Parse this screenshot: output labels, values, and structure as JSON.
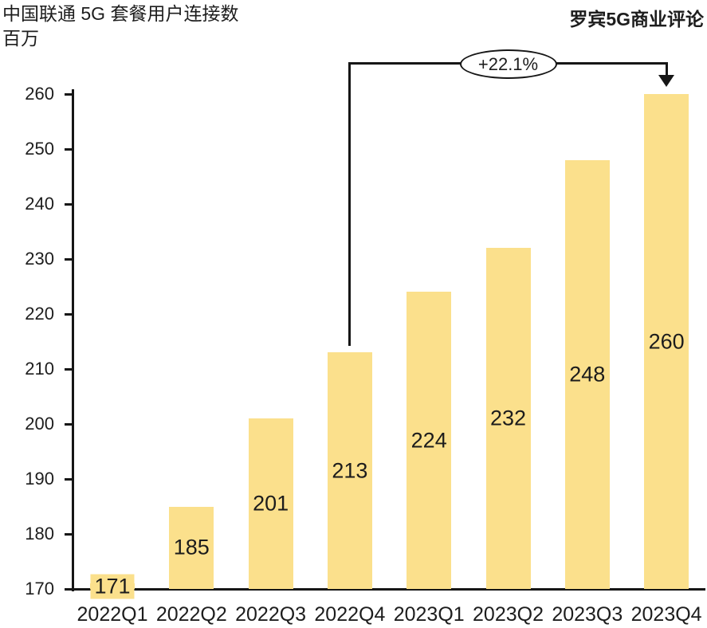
{
  "header": {
    "title": "中国联通 5G 套餐用户连接数",
    "unit": "百万",
    "source": "罗宾5G商业评论"
  },
  "chart_data": {
    "type": "bar",
    "title": "中国联通 5G 套餐用户连接数",
    "ylabel": "百万",
    "categories": [
      "2022Q1",
      "2022Q2",
      "2022Q3",
      "2022Q4",
      "2023Q1",
      "2023Q2",
      "2023Q3",
      "2023Q4"
    ],
    "values": [
      171,
      185,
      201,
      213,
      224,
      232,
      248,
      260
    ],
    "ylim": [
      170,
      260
    ],
    "yticks": [
      170,
      180,
      190,
      200,
      210,
      220,
      230,
      240,
      250,
      260
    ],
    "grid": false,
    "legend_position": "none",
    "bar_color": "#FBE08C",
    "axis_color": "#161616",
    "text_color": "#1d1d1d",
    "annotation": {
      "label": "+22.1%",
      "from_category": "2022Q4",
      "to_category": "2023Q4"
    }
  }
}
